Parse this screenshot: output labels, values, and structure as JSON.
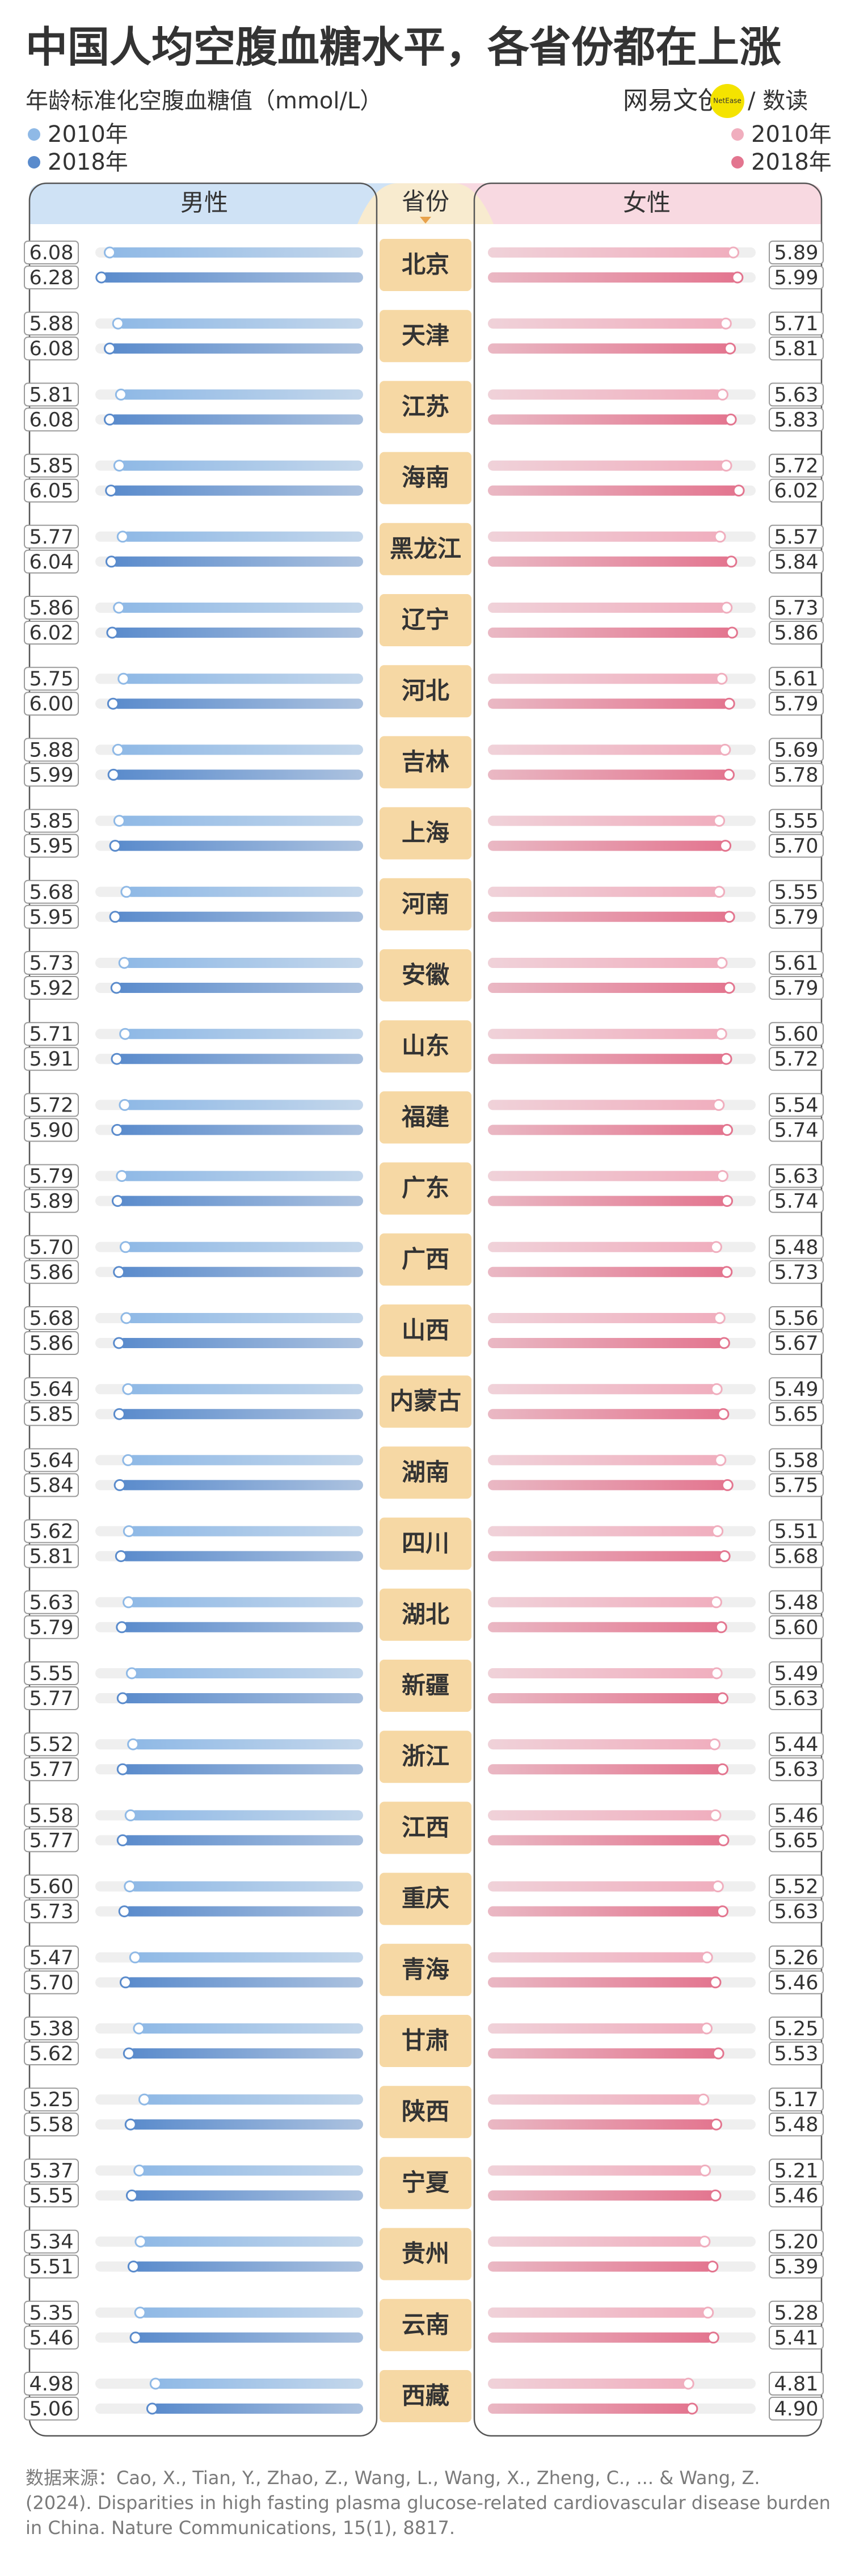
{
  "chart_data": {
    "type": "butterfly-bar",
    "title": "中国人均空腹血糖水平，各省份都在上涨",
    "subtitle": "年龄标准化空腹血糖值（mmol/L）",
    "brand": "网易文创",
    "brand_badge": "NetEase",
    "brand_sub": "/ 数读",
    "category_label": "省份",
    "categories": [
      "北京",
      "天津",
      "江苏",
      "海南",
      "黑龙江",
      "辽宁",
      "河北",
      "吉林",
      "上海",
      "河南",
      "安徽",
      "山东",
      "福建",
      "广东",
      "广西",
      "山西",
      "内蒙古",
      "湖南",
      "四川",
      "湖北",
      "新疆",
      "浙江",
      "江西",
      "重庆",
      "青海",
      "甘肃",
      "陕西",
      "宁夏",
      "贵州",
      "云南",
      "西藏"
    ],
    "xlim": [
      0,
      6.4
    ],
    "groups": [
      {
        "name": "男性",
        "series": [
          {
            "name": "2010年",
            "color": "#8fb9e6",
            "values": [
              6.08,
              5.88,
              5.81,
              5.85,
              5.77,
              5.86,
              5.75,
              5.88,
              5.85,
              5.68,
              5.73,
              5.71,
              5.72,
              5.79,
              5.7,
              5.68,
              5.64,
              5.64,
              5.62,
              5.63,
              5.55,
              5.52,
              5.58,
              5.6,
              5.47,
              5.38,
              5.25,
              5.37,
              5.34,
              5.35,
              4.98
            ],
            "value_labels": [
              "6.08",
              "5.88",
              "5.81",
              "5.85",
              "5.77",
              "5.86",
              "5.75",
              "5.88",
              "5.85",
              "5.68",
              "5.73",
              "5.71",
              "5.72",
              "5.79",
              "5.70",
              "5.68",
              "5.64",
              "5.64",
              "5.62",
              "5.63",
              "5.55",
              "5.52",
              "5.58",
              "5.60",
              "5.47",
              "5.38",
              "5.25",
              "5.37",
              "5.34",
              "5.35",
              "4.98"
            ]
          },
          {
            "name": "2018年",
            "color": "#5a8bcc",
            "values": [
              6.28,
              6.08,
              6.08,
              6.05,
              6.04,
              6.02,
              6.0,
              5.99,
              5.95,
              5.95,
              5.92,
              5.91,
              5.9,
              5.89,
              5.86,
              5.86,
              5.85,
              5.84,
              5.81,
              5.79,
              5.77,
              5.77,
              5.77,
              5.73,
              5.7,
              5.62,
              5.58,
              5.55,
              5.51,
              5.46,
              5.06
            ],
            "value_labels": [
              "6.28",
              "6.08",
              "6.08",
              "6.05",
              "6.04",
              "6.02",
              "6.00",
              "5.99",
              "5.95",
              "5.95",
              "5.92",
              "5.91",
              "5.90",
              "5.89",
              "5.86",
              "5.86",
              "5.85",
              "5.84",
              "5.81",
              "5.79",
              "5.77",
              "5.77",
              "5.77",
              "5.73",
              "5.70",
              "5.62",
              "5.58",
              "5.55",
              "5.51",
              "5.46",
              "5.06"
            ]
          }
        ]
      },
      {
        "name": "女性",
        "series": [
          {
            "name": "2010年",
            "color": "#f0aebe",
            "values": [
              5.89,
              5.71,
              5.63,
              5.72,
              5.57,
              5.73,
              5.61,
              5.69,
              5.55,
              5.55,
              5.61,
              5.6,
              5.54,
              5.63,
              5.48,
              5.56,
              5.49,
              5.58,
              5.51,
              5.48,
              5.49,
              5.44,
              5.46,
              5.52,
              5.26,
              5.25,
              5.17,
              5.21,
              5.2,
              5.28,
              4.81
            ],
            "value_labels": [
              "5.89",
              "5.71",
              "5.63",
              "5.72",
              "5.57",
              "5.73",
              "5.61",
              "5.69",
              "5.55",
              "5.55",
              "5.61",
              "5.60",
              "5.54",
              "5.63",
              "5.48",
              "5.56",
              "5.49",
              "5.58",
              "5.51",
              "5.48",
              "5.49",
              "5.44",
              "5.46",
              "5.52",
              "5.26",
              "5.25",
              "5.17",
              "5.21",
              "5.20",
              "5.28",
              "4.81"
            ]
          },
          {
            "name": "2018年",
            "color": "#e3758f",
            "values": [
              5.99,
              5.81,
              5.83,
              6.02,
              5.84,
              5.86,
              5.79,
              5.78,
              5.7,
              5.79,
              5.79,
              5.72,
              5.74,
              5.74,
              5.73,
              5.67,
              5.65,
              5.75,
              5.68,
              5.6,
              5.63,
              5.63,
              5.65,
              5.63,
              5.46,
              5.53,
              5.48,
              5.46,
              5.39,
              5.41,
              4.9
            ],
            "value_labels": [
              "5.99",
              "5.81",
              "5.83",
              "6.02",
              "5.84",
              "5.86",
              "5.79",
              "5.78",
              "5.70",
              "5.79",
              "5.79",
              "5.72",
              "5.74",
              "5.74",
              "5.73",
              "5.67",
              "5.65",
              "5.75",
              "5.68",
              "5.60",
              "5.63",
              "5.63",
              "5.65",
              "5.63",
              "5.46",
              "5.53",
              "5.48",
              "5.46",
              "5.39",
              "5.41",
              "4.90"
            ]
          }
        ]
      }
    ],
    "source": "数据来源：Cao, X., Tian, Y., Zhao, Z., Wang, L., Wang, X., Zheng, C., ... & Wang, Z. (2024). Disparities in high fasting plasma glucose-related cardiovascular disease burden in China. Nature Communications, 15(1), 8817."
  }
}
